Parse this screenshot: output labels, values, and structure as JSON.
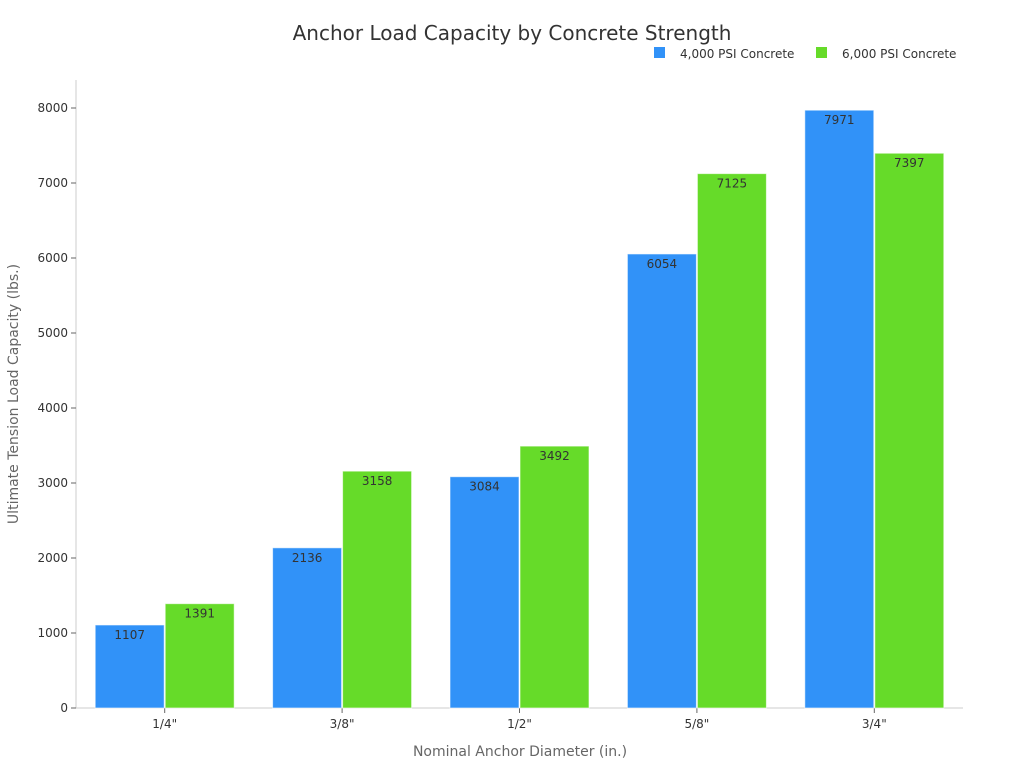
{
  "chart_data": {
    "type": "bar",
    "title": "Anchor Load Capacity by Concrete Strength",
    "xlabel": "Nominal Anchor Diameter (in.)",
    "ylabel": "Ultimate Tension Load Capacity (lbs.)",
    "categories": [
      "1/4\"",
      "3/8\"",
      "1/2\"",
      "5/8\"",
      "3/4\""
    ],
    "series": [
      {
        "name": "4,000 PSI Concrete",
        "color": "#3192f8",
        "values": [
          1107,
          2136,
          3084,
          6054,
          7971
        ]
      },
      {
        "name": "6,000 PSI Concrete",
        "color": "#66db29",
        "values": [
          1391,
          3158,
          3492,
          7125,
          7397
        ]
      }
    ],
    "ylim": [
      0,
      8000
    ],
    "yticks": [
      0,
      1000,
      2000,
      3000,
      4000,
      5000,
      6000,
      7000,
      8000
    ],
    "grid": false,
    "legend": "top-right",
    "data_labels": true
  }
}
